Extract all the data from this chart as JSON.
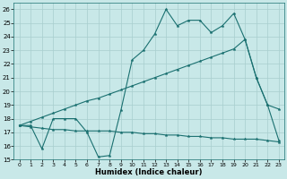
{
  "xlabel": "Humidex (Indice chaleur)",
  "xlim": [
    -0.5,
    23.5
  ],
  "ylim": [
    15,
    26.5
  ],
  "yticks": [
    15,
    16,
    17,
    18,
    19,
    20,
    21,
    22,
    23,
    24,
    25,
    26
  ],
  "xticks": [
    0,
    1,
    2,
    3,
    4,
    5,
    6,
    7,
    8,
    9,
    10,
    11,
    12,
    13,
    14,
    15,
    16,
    17,
    18,
    19,
    20,
    21,
    22,
    23
  ],
  "bg_color": "#c8e8e8",
  "line_color": "#1a7070",
  "grid_color": "#a8cece",
  "line1_y": [
    17.5,
    17.5,
    15.8,
    18.0,
    18.0,
    18.0,
    17.0,
    15.2,
    15.3,
    18.6,
    22.3,
    23.0,
    24.2,
    26.0,
    24.8,
    25.2,
    25.2,
    24.3,
    24.8,
    25.7,
    23.8,
    21.0,
    19.0,
    18.7
  ],
  "line2_y": [
    17.5,
    17.4,
    17.3,
    17.2,
    17.2,
    17.1,
    17.1,
    17.1,
    17.1,
    17.0,
    17.0,
    16.9,
    16.9,
    16.8,
    16.8,
    16.7,
    16.7,
    16.6,
    16.6,
    16.5,
    16.5,
    16.5,
    16.4,
    16.3
  ],
  "line3_x": [
    0,
    1,
    2,
    3,
    4,
    5,
    6,
    7,
    8,
    9,
    10,
    11,
    12,
    13,
    14,
    15,
    16,
    17,
    18,
    19,
    20,
    21,
    22,
    23
  ],
  "line3_y": [
    17.5,
    17.8,
    18.1,
    18.4,
    18.7,
    19.0,
    19.3,
    19.5,
    19.8,
    20.1,
    20.4,
    20.7,
    21.0,
    21.3,
    21.6,
    21.9,
    22.2,
    22.5,
    22.8,
    23.1,
    23.8,
    21.0,
    19.0,
    16.4
  ]
}
